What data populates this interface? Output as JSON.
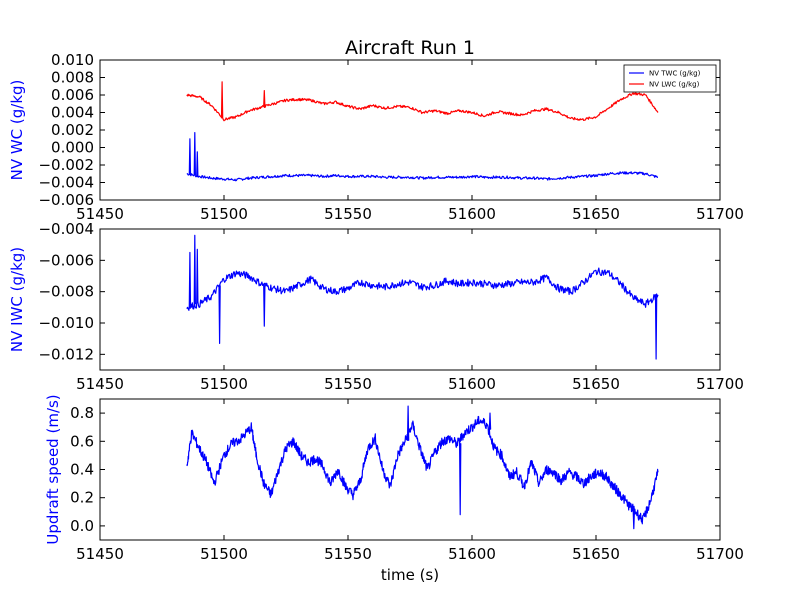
{
  "chart_data": [
    {
      "type": "line",
      "title": "Aircraft Run 1",
      "xlabel": "",
      "ylabel": "NV WC (g/kg)",
      "ylabel_color": "#0000ff",
      "xlim": [
        51450,
        51700
      ],
      "ylim": [
        -0.006,
        0.01
      ],
      "x_ticks": [
        "51450",
        "51500",
        "51550",
        "51600",
        "51650",
        "51700"
      ],
      "y_ticks": [
        "0.010",
        "0.008",
        "0.006",
        "0.004",
        "0.002",
        "0.000",
        "−0.002",
        "−0.004",
        "−0.006"
      ],
      "grid": false,
      "legend": {
        "position": "top-right",
        "entries": [
          "NV TWC (g/kg)",
          "NV LWC (g/kg)"
        ]
      },
      "series": [
        {
          "name": "NV TWC (g/kg)",
          "color": "#0000ff",
          "x": [
            51485,
            51490,
            51495,
            51500,
            51505,
            51510,
            51515,
            51520,
            51525,
            51530,
            51535,
            51540,
            51545,
            51550,
            51555,
            51560,
            51565,
            51570,
            51575,
            51580,
            51585,
            51590,
            51595,
            51600,
            51605,
            51610,
            51615,
            51620,
            51625,
            51630,
            51635,
            51640,
            51645,
            51650,
            51655,
            51660,
            51665,
            51670,
            51675
          ],
          "y": [
            -0.003,
            -0.0033,
            -0.0035,
            -0.0036,
            -0.0037,
            -0.0035,
            -0.0034,
            -0.0033,
            -0.0032,
            -0.0032,
            -0.0032,
            -0.0033,
            -0.0032,
            -0.0033,
            -0.0033,
            -0.0033,
            -0.0034,
            -0.0034,
            -0.0034,
            -0.0035,
            -0.0034,
            -0.0034,
            -0.0034,
            -0.0033,
            -0.0034,
            -0.0034,
            -0.0034,
            -0.0035,
            -0.0035,
            -0.0036,
            -0.0035,
            -0.0034,
            -0.0033,
            -0.0032,
            -0.003,
            -0.0029,
            -0.0029,
            -0.003,
            -0.0034
          ]
        },
        {
          "name": "NV LWC (g/kg)",
          "color": "#ff0000",
          "x": [
            51485,
            51490,
            51495,
            51500,
            51505,
            51510,
            51515,
            51520,
            51525,
            51530,
            51535,
            51540,
            51545,
            51550,
            51555,
            51560,
            51565,
            51570,
            51575,
            51580,
            51585,
            51590,
            51595,
            51600,
            51605,
            51610,
            51615,
            51620,
            51625,
            51630,
            51635,
            51640,
            51645,
            51650,
            51655,
            51660,
            51665,
            51670,
            51675
          ],
          "y": [
            0.006,
            0.0058,
            0.0048,
            0.0032,
            0.0035,
            0.0042,
            0.0046,
            0.005,
            0.0054,
            0.0055,
            0.0054,
            0.005,
            0.0052,
            0.0047,
            0.0044,
            0.0048,
            0.0045,
            0.0047,
            0.0046,
            0.004,
            0.0042,
            0.0039,
            0.0042,
            0.004,
            0.0036,
            0.0041,
            0.0039,
            0.0037,
            0.0042,
            0.0044,
            0.004,
            0.0033,
            0.0032,
            0.0035,
            0.0045,
            0.0055,
            0.0062,
            0.006,
            0.004
          ]
        }
      ],
      "spikes": [
        {
          "series": 0,
          "x": 51486,
          "y": 0.001
        },
        {
          "series": 0,
          "x": 51488,
          "y": 0.0017
        },
        {
          "series": 0,
          "x": 51489,
          "y": -0.0005
        },
        {
          "series": 1,
          "x": 51499,
          "y": 0.0075
        },
        {
          "series": 1,
          "x": 51516,
          "y": 0.0065
        }
      ]
    },
    {
      "type": "line",
      "title": "",
      "xlabel": "",
      "ylabel": "NV IWC (g/kg)",
      "ylabel_color": "#0000ff",
      "xlim": [
        51450,
        51700
      ],
      "ylim": [
        -0.013,
        -0.004
      ],
      "x_ticks": [
        "51450",
        "51500",
        "51550",
        "51600",
        "51650",
        "51700"
      ],
      "y_ticks": [
        "−0.004",
        "−0.006",
        "−0.008",
        "−0.010",
        "−0.012"
      ],
      "grid": false,
      "series": [
        {
          "color": "#0000ff",
          "x": [
            51485,
            51490,
            51495,
            51500,
            51505,
            51510,
            51515,
            51520,
            51525,
            51530,
            51535,
            51540,
            51545,
            51550,
            51555,
            51560,
            51565,
            51570,
            51575,
            51580,
            51585,
            51590,
            51595,
            51600,
            51605,
            51610,
            51615,
            51620,
            51625,
            51630,
            51635,
            51640,
            51645,
            51650,
            51655,
            51660,
            51665,
            51670,
            51675
          ],
          "y": [
            -0.009,
            -0.0088,
            -0.0083,
            -0.0072,
            -0.0068,
            -0.007,
            -0.0075,
            -0.0078,
            -0.008,
            -0.0076,
            -0.0072,
            -0.0078,
            -0.008,
            -0.0078,
            -0.0074,
            -0.0076,
            -0.0077,
            -0.0075,
            -0.0074,
            -0.0077,
            -0.0076,
            -0.0073,
            -0.0075,
            -0.0074,
            -0.0075,
            -0.0076,
            -0.0075,
            -0.0074,
            -0.0074,
            -0.0071,
            -0.0078,
            -0.008,
            -0.0074,
            -0.0067,
            -0.0068,
            -0.0075,
            -0.0084,
            -0.0088,
            -0.0082
          ]
        }
      ],
      "spikes": [
        {
          "series": 0,
          "x": 51486,
          "y": -0.0055
        },
        {
          "series": 0,
          "x": 51488,
          "y": -0.0044
        },
        {
          "series": 0,
          "x": 51489,
          "y": -0.0053
        },
        {
          "series": 0,
          "x": 51498,
          "y": -0.0113
        },
        {
          "series": 0,
          "x": 51516,
          "y": -0.0102
        },
        {
          "series": 0,
          "x": 51674,
          "y": -0.0123
        }
      ]
    },
    {
      "type": "line",
      "title": "",
      "xlabel": "time (s)",
      "ylabel": "Updraft speed (m/s)",
      "ylabel_color": "#0000ff",
      "xlim": [
        51450,
        51700
      ],
      "ylim": [
        -0.1,
        0.9
      ],
      "x_ticks": [
        "51450",
        "51500",
        "51550",
        "51600",
        "51650",
        "51700"
      ],
      "y_ticks": [
        "0.8",
        "0.6",
        "0.4",
        "0.2",
        "0.0"
      ],
      "grid": false,
      "series": [
        {
          "color": "#0000ff",
          "x": [
            51485,
            51487,
            51490,
            51493,
            51496,
            51500,
            51503,
            51507,
            51511,
            51513,
            51516,
            51519,
            51522,
            51525,
            51528,
            51531,
            51534,
            51537,
            51540,
            51543,
            51546,
            51549,
            51552,
            51555,
            51558,
            51561,
            51564,
            51567,
            51570,
            51573,
            51576,
            51579,
            51582,
            51585,
            51588,
            51591,
            51594,
            51597,
            51600,
            51603,
            51606,
            51609,
            51612,
            51615,
            51618,
            51621,
            51624,
            51627,
            51630,
            51633,
            51636,
            51639,
            51642,
            51645,
            51648,
            51651,
            51654,
            51657,
            51660,
            51663,
            51666,
            51669,
            51672,
            51675
          ],
          "y": [
            0.42,
            0.66,
            0.55,
            0.45,
            0.3,
            0.5,
            0.58,
            0.62,
            0.7,
            0.5,
            0.3,
            0.22,
            0.4,
            0.55,
            0.6,
            0.5,
            0.45,
            0.48,
            0.42,
            0.3,
            0.4,
            0.28,
            0.22,
            0.32,
            0.55,
            0.62,
            0.4,
            0.28,
            0.5,
            0.6,
            0.72,
            0.55,
            0.4,
            0.52,
            0.6,
            0.62,
            0.58,
            0.66,
            0.7,
            0.75,
            0.72,
            0.55,
            0.5,
            0.35,
            0.38,
            0.28,
            0.45,
            0.3,
            0.4,
            0.38,
            0.32,
            0.38,
            0.35,
            0.3,
            0.35,
            0.38,
            0.35,
            0.28,
            0.22,
            0.15,
            0.1,
            0.04,
            0.18,
            0.38
          ]
        }
      ],
      "spikes": [
        {
          "series": 0,
          "x": 51574,
          "y": 0.85
        },
        {
          "series": 0,
          "x": 51607,
          "y": 0.8
        },
        {
          "series": 0,
          "x": 51595,
          "y": 0.08
        },
        {
          "series": 0,
          "x": 51665,
          "y": -0.02
        }
      ]
    }
  ]
}
